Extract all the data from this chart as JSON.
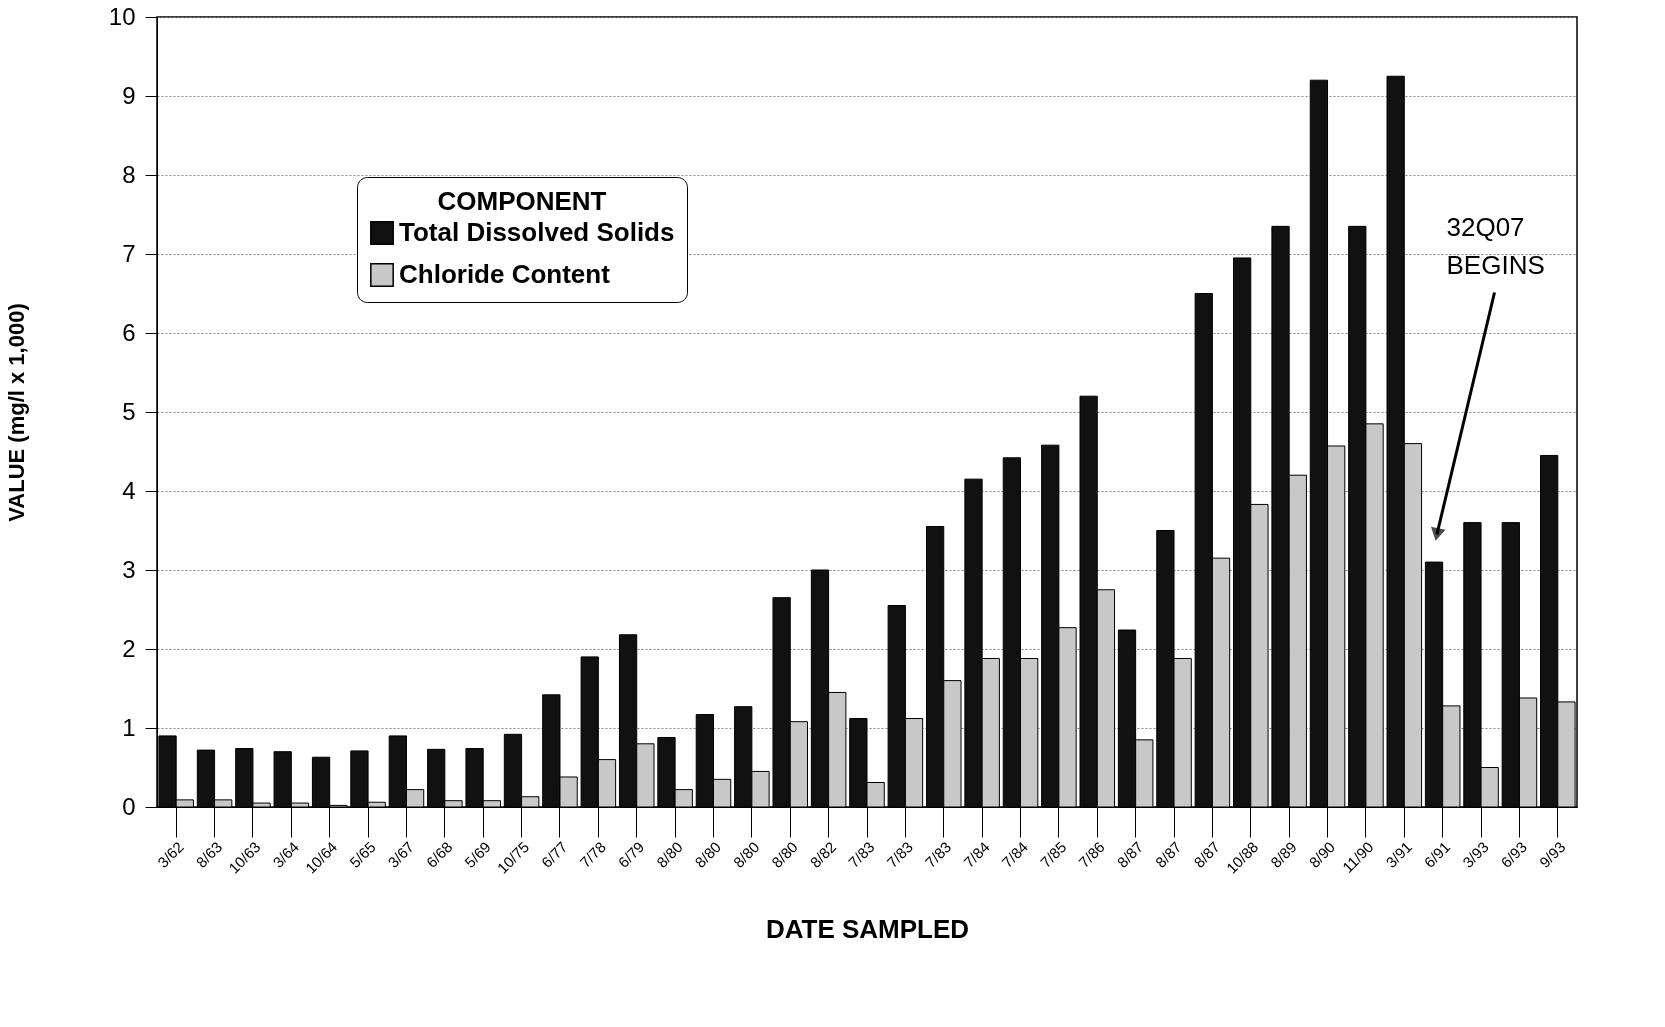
{
  "chart_data": {
    "type": "bar",
    "xlabel": "DATE SAMPLED",
    "ylabel": "VALUE (mg/l x 1,000)",
    "legend_title": "COMPONENT",
    "categories": [
      "3/62",
      "8/63",
      "10/63",
      "3/64",
      "10/64",
      "5/65",
      "3/67",
      "6/68",
      "5/69",
      "10/75",
      "6/77",
      "7/78",
      "6/79",
      "8/80",
      "8/80",
      "8/80",
      "8/80",
      "8/82",
      "7/83",
      "7/83",
      "7/83",
      "7/84",
      "7/84",
      "7/85",
      "7/86",
      "8/87",
      "8/87",
      "8/87",
      "10/88",
      "8/89",
      "8/90",
      "11/90",
      "3/91",
      "6/91",
      "3/93",
      "6/93",
      "9/93"
    ],
    "series": [
      {
        "name": "Total Dissolved Solids",
        "color": "#111111",
        "values": [
          0.9,
          0.72,
          0.74,
          0.7,
          0.63,
          0.71,
          0.9,
          0.73,
          0.74,
          0.92,
          1.42,
          1.9,
          2.18,
          0.88,
          1.17,
          1.27,
          2.65,
          3.0,
          1.12,
          2.55,
          3.55,
          4.15,
          4.42,
          4.58,
          5.2,
          2.24,
          3.5,
          6.5,
          6.95,
          7.35,
          9.2,
          7.35,
          9.25,
          3.1,
          3.6,
          3.6,
          4.45
        ]
      },
      {
        "name": "Chloride Content",
        "color": "#c8c8c8",
        "values": [
          0.09,
          0.09,
          0.05,
          0.05,
          0.02,
          0.06,
          0.22,
          0.08,
          0.08,
          0.13,
          0.38,
          0.6,
          0.8,
          0.22,
          0.35,
          0.45,
          1.08,
          1.45,
          0.31,
          1.12,
          1.6,
          1.88,
          1.88,
          2.27,
          2.75,
          0.85,
          1.88,
          3.15,
          3.83,
          4.2,
          4.57,
          4.85,
          4.6,
          1.28,
          0.5,
          1.38,
          1.33
        ]
      }
    ],
    "ylim": [
      0,
      10
    ],
    "yticks": [
      0,
      1,
      2,
      3,
      4,
      5,
      6,
      7,
      8,
      9,
      10
    ],
    "grid": "y",
    "legend": "top left",
    "annotations": [
      "32Q07 BEGINS"
    ]
  }
}
